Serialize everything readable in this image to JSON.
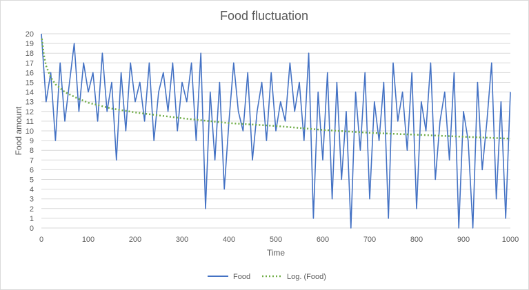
{
  "chart_data": {
    "type": "line",
    "title": "Food fluctuation",
    "xlabel": "Time",
    "ylabel": "Food amount",
    "xlim": [
      0,
      1000
    ],
    "ylim": [
      0,
      20
    ],
    "x_ticks": [
      0,
      100,
      200,
      300,
      400,
      500,
      600,
      700,
      800,
      900,
      1000
    ],
    "y_ticks": [
      0,
      1,
      2,
      3,
      4,
      5,
      6,
      7,
      8,
      9,
      10,
      11,
      12,
      13,
      14,
      15,
      16,
      17,
      18,
      19,
      20
    ],
    "grid": "horizontal",
    "legend_position": "bottom",
    "colors": {
      "food": "#4472c4",
      "trend": "#70ad47",
      "grid": "#d9d9d9",
      "text": "#595959"
    },
    "series": [
      {
        "name": "Food",
        "style": "solid",
        "x": [
          0,
          10,
          20,
          30,
          40,
          50,
          60,
          70,
          80,
          90,
          100,
          110,
          120,
          130,
          140,
          150,
          160,
          170,
          180,
          190,
          200,
          210,
          220,
          230,
          240,
          250,
          260,
          270,
          280,
          290,
          300,
          310,
          320,
          330,
          340,
          350,
          360,
          370,
          380,
          390,
          400,
          410,
          420,
          430,
          440,
          450,
          460,
          470,
          480,
          490,
          500,
          510,
          520,
          530,
          540,
          550,
          560,
          570,
          580,
          590,
          600,
          610,
          620,
          630,
          640,
          650,
          660,
          670,
          680,
          690,
          700,
          710,
          720,
          730,
          740,
          750,
          760,
          770,
          780,
          790,
          800,
          810,
          820,
          830,
          840,
          850,
          860,
          870,
          880,
          890,
          900,
          910,
          920,
          930,
          940,
          950,
          960,
          970,
          980,
          990,
          1000
        ],
        "values": [
          20,
          13,
          16,
          9,
          17,
          11,
          15,
          19,
          12,
          17,
          14,
          16,
          11,
          18,
          12,
          15,
          7,
          16,
          10,
          17,
          13,
          15,
          11,
          17,
          9,
          14,
          16,
          12,
          17,
          10,
          15,
          13,
          17,
          9,
          18,
          2,
          14,
          7,
          15,
          4,
          11,
          17,
          12,
          10,
          16,
          7,
          12,
          15,
          9,
          16,
          10,
          13,
          11,
          17,
          12,
          15,
          9,
          18,
          1,
          14,
          7,
          16,
          3,
          15,
          5,
          12,
          0,
          14,
          8,
          16,
          3,
          13,
          9,
          15,
          1,
          17,
          11,
          14,
          8,
          16,
          2,
          13,
          10,
          17,
          5,
          11,
          14,
          7,
          16,
          0,
          12,
          9,
          0,
          15,
          6,
          11,
          17,
          3,
          13,
          1,
          14
        ]
      },
      {
        "name": "Log. (Food)",
        "style": "dotted",
        "x": [
          1,
          5,
          10,
          20,
          30,
          50,
          75,
          100,
          150,
          200,
          300,
          400,
          500,
          600,
          700,
          800,
          900,
          1000
        ],
        "values": [
          19.5,
          17.9,
          16.7,
          15.5,
          14.8,
          14.0,
          13.4,
          12.9,
          12.3,
          11.9,
          11.3,
          10.8,
          10.5,
          10.1,
          9.8,
          9.6,
          9.4,
          9.2
        ]
      }
    ]
  }
}
